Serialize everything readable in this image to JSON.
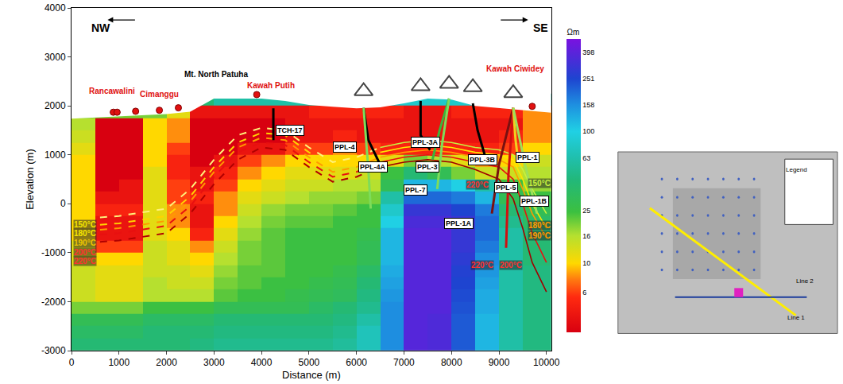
{
  "chart_data": {
    "type": "heatmap",
    "xlabel": "Distance (m)",
    "ylabel": "Elevation (m)",
    "xlim": [
      0,
      10100
    ],
    "ylim": [
      -3000,
      4000
    ],
    "xticks": [
      0,
      1000,
      2000,
      3000,
      4000,
      5000,
      6000,
      7000,
      8000,
      9000,
      10000
    ],
    "yticks": [
      -3000,
      -2000,
      -1000,
      0,
      1000,
      2000,
      3000,
      4000
    ],
    "grid": false,
    "x_edges": [
      0,
      500,
      1000,
      1500,
      2000,
      2500,
      3000,
      3500,
      4000,
      4500,
      5000,
      5500,
      6000,
      6500,
      7000,
      7500,
      8000,
      8500,
      9000,
      9500,
      10100
    ],
    "y_edges": [
      -3000,
      -2750,
      -2500,
      -2250,
      -2000,
      -1750,
      -1500,
      -1250,
      -1000,
      -750,
      -500,
      -250,
      0,
      250,
      500,
      750,
      1000,
      1250,
      1500,
      1750,
      2000,
      2250
    ],
    "cells": [
      [
        40,
        40,
        40,
        40,
        40,
        45,
        50,
        50,
        50,
        50,
        50,
        55,
        70,
        160,
        380,
        360,
        220,
        120,
        60,
        45
      ],
      [
        35,
        35,
        35,
        40,
        40,
        40,
        45,
        45,
        45,
        45,
        45,
        50,
        70,
        160,
        380,
        360,
        220,
        120,
        60,
        45
      ],
      [
        30,
        30,
        30,
        35,
        35,
        35,
        40,
        40,
        40,
        40,
        40,
        45,
        60,
        160,
        380,
        360,
        220,
        120,
        60,
        45
      ],
      [
        20,
        20,
        20,
        25,
        25,
        25,
        30,
        30,
        30,
        30,
        35,
        40,
        50,
        160,
        380,
        380,
        230,
        130,
        60,
        45
      ],
      [
        14,
        12,
        12,
        16,
        16,
        16,
        22,
        25,
        25,
        28,
        30,
        32,
        45,
        150,
        380,
        380,
        240,
        130,
        60,
        45
      ],
      [
        14,
        12,
        12,
        16,
        14,
        14,
        20,
        22,
        25,
        25,
        28,
        30,
        40,
        140,
        380,
        380,
        250,
        140,
        60,
        45
      ],
      [
        14,
        12,
        12,
        14,
        14,
        12,
        18,
        22,
        22,
        25,
        25,
        28,
        35,
        130,
        380,
        380,
        260,
        150,
        60,
        45
      ],
      [
        12,
        10,
        10,
        14,
        12,
        10,
        16,
        20,
        22,
        25,
        25,
        25,
        30,
        120,
        380,
        380,
        280,
        160,
        60,
        40
      ],
      [
        12,
        6,
        6,
        14,
        12,
        8,
        14,
        20,
        22,
        25,
        25,
        25,
        30,
        120,
        380,
        380,
        300,
        180,
        60,
        40
      ],
      [
        10,
        4,
        4,
        12,
        10,
        5,
        12,
        18,
        22,
        25,
        25,
        25,
        28,
        120,
        380,
        380,
        300,
        200,
        60,
        40
      ],
      [
        10,
        4,
        4,
        12,
        8,
        4,
        10,
        16,
        20,
        22,
        22,
        25,
        25,
        100,
        350,
        350,
        300,
        200,
        50,
        35
      ],
      [
        10,
        5,
        5,
        12,
        8,
        4,
        8,
        14,
        18,
        20,
        20,
        22,
        25,
        80,
        300,
        300,
        250,
        180,
        40,
        30
      ],
      [
        10,
        4,
        4,
        12,
        6,
        5,
        8,
        12,
        14,
        16,
        18,
        18,
        20,
        60,
        200,
        200,
        180,
        120,
        30,
        25
      ],
      [
        10,
        3,
        4,
        12,
        6,
        4,
        6,
        10,
        12,
        14,
        14,
        16,
        16,
        30,
        120,
        120,
        100,
        60,
        25,
        18
      ],
      [
        10,
        3,
        3,
        12,
        5,
        4,
        5,
        8,
        10,
        12,
        12,
        12,
        14,
        25,
        40,
        30,
        20,
        14,
        14,
        16
      ],
      [
        10,
        3,
        3,
        10,
        5,
        3,
        4,
        6,
        8,
        10,
        10,
        10,
        10,
        12,
        20,
        16,
        12,
        8,
        10,
        14
      ],
      [
        12,
        3,
        3,
        10,
        6,
        3,
        3,
        4,
        4,
        6,
        6,
        8,
        6,
        5,
        5,
        5,
        5,
        5,
        6,
        10
      ],
      [
        14,
        3,
        3,
        10,
        8,
        3,
        3,
        3,
        3,
        4,
        4,
        5,
        4,
        4,
        4,
        4,
        4,
        4,
        5,
        8
      ],
      [
        16,
        3,
        3,
        10,
        8,
        3,
        3,
        3,
        3,
        4,
        4,
        4,
        4,
        4,
        4,
        4,
        4,
        4,
        4,
        8
      ],
      [
        20,
        20,
        20,
        20,
        12,
        4,
        4,
        4,
        4,
        4,
        5,
        5,
        5,
        5,
        4,
        4,
        5,
        5,
        5,
        8
      ],
      [
        20,
        20,
        20,
        20,
        20,
        40,
        60,
        60,
        60,
        60,
        60,
        60,
        60,
        80,
        80,
        80,
        80,
        60,
        60,
        60
      ]
    ],
    "colorbar": {
      "title": "Ωm",
      "range": [
        3,
        500
      ],
      "log": true,
      "ticks": [
        6,
        10,
        16,
        25,
        63,
        100,
        158,
        251,
        398
      ]
    },
    "surface": {
      "x": [
        0,
        500,
        1000,
        1500,
        2000,
        2500,
        2800,
        3000,
        3500,
        4000,
        4500,
        5000,
        5500,
        6000,
        6500,
        7000,
        7500,
        8000,
        8500,
        9000,
        9500,
        10000,
        10100
      ],
      "elevation": [
        1740,
        1760,
        1790,
        1800,
        1830,
        1880,
        2050,
        2150,
        2150,
        2150,
        2100,
        2020,
        1980,
        1950,
        1970,
        2050,
        2150,
        2130,
        2000,
        1960,
        1920,
        1870,
        1860
      ]
    },
    "isotherms": [
      {
        "color": "#fff27a",
        "line_style": "dash",
        "x": [
          600,
          1000,
          2000,
          2500,
          3000,
          3500,
          4000,
          4500,
          5000,
          5500,
          6000,
          6500
        ],
        "y": [
          -280,
          -250,
          -100,
          300,
          900,
          1400,
          1550,
          1500,
          1150,
          850,
          950,
          1150
        ]
      },
      {
        "color": "#ffd400",
        "line_style": "dash",
        "x": [
          600,
          1000,
          2000,
          2500,
          3000,
          3500,
          4000,
          4500,
          5000,
          5500,
          6000,
          6500
        ],
        "y": [
          -430,
          -400,
          -250,
          150,
          750,
          1250,
          1450,
          1400,
          1050,
          750,
          850,
          1050
        ]
      },
      {
        "color": "#ff9a00",
        "line_style": "dash",
        "x": [
          600,
          1000,
          2000,
          2500,
          3000,
          3500,
          4000,
          4500,
          5000,
          5500,
          6000,
          6500
        ],
        "y": [
          -530,
          -500,
          -350,
          50,
          650,
          1150,
          1350,
          1300,
          950,
          650,
          750,
          950
        ]
      },
      {
        "color": "#e81010",
        "line_style": "dash",
        "x": [
          600,
          1000,
          2000,
          2500,
          3000,
          3500,
          4000,
          4500,
          5000,
          5500,
          6000,
          6500
        ],
        "y": [
          -630,
          -600,
          -450,
          -50,
          550,
          1050,
          1250,
          1200,
          850,
          550,
          650,
          850
        ]
      },
      {
        "color": "#b00000",
        "line_style": "dash",
        "x": [
          600,
          1000,
          2000,
          2500,
          3000,
          3500,
          4000,
          4500,
          5000,
          5500,
          6000,
          6500
        ],
        "y": [
          -780,
          -750,
          -600,
          -200,
          400,
          900,
          1150,
          1100,
          750,
          450,
          550,
          750
        ]
      },
      {
        "color": "#c8f040",
        "line_style": "solid",
        "x": [
          6500,
          7000,
          7500,
          8000,
          8500,
          9000,
          9300,
          9500,
          9700,
          10000
        ],
        "y": [
          1150,
          1250,
          1300,
          1250,
          1150,
          1100,
          1000,
          700,
          300,
          -200
        ]
      },
      {
        "color": "#ffe600",
        "line_style": "solid",
        "x": [
          6500,
          7000,
          7500,
          8000,
          8500,
          9000,
          9300,
          9500,
          9700,
          10000
        ],
        "y": [
          1050,
          1150,
          1200,
          1150,
          1050,
          1000,
          900,
          500,
          0,
          -500
        ]
      },
      {
        "color": "#ff9a00",
        "line_style": "solid",
        "x": [
          6500,
          7000,
          7500,
          8000,
          8500,
          9000,
          9300,
          9500,
          9700,
          10000
        ],
        "y": [
          950,
          1050,
          1100,
          1050,
          950,
          900,
          750,
          300,
          -200,
          -700
        ]
      },
      {
        "color": "#e81010",
        "line_style": "solid",
        "x": [
          6500,
          7000,
          7500,
          8000,
          8500,
          9000,
          9300,
          9500,
          9700,
          10000
        ],
        "y": [
          850,
          950,
          1000,
          950,
          850,
          750,
          500,
          0,
          -600,
          -1200
        ]
      },
      {
        "color": "#a00000",
        "line_style": "solid",
        "x": [
          6500,
          7000,
          7500,
          8000,
          8500,
          9000,
          9300,
          9500,
          9700,
          10000
        ],
        "y": [
          750,
          850,
          900,
          850,
          700,
          500,
          100,
          -500,
          -1200,
          -1800
        ]
      }
    ],
    "wells": [
      {
        "x": [
          4250,
          4250
        ],
        "y": [
          1950,
          1300
        ],
        "color": "#000000"
      },
      {
        "x": [
          6150,
          6250,
          6500
        ],
        "y": [
          1960,
          1300,
          800
        ],
        "color": "#000000"
      },
      {
        "x": [
          6150,
          6250,
          6300
        ],
        "y": [
          1960,
          700,
          -100
        ],
        "color": "#7ddc5a"
      },
      {
        "x": [
          7350,
          7350,
          7550
        ],
        "y": [
          2100,
          1400,
          1100
        ],
        "color": "#000000"
      },
      {
        "x": [
          7950,
          7750,
          7600
        ],
        "y": [
          2150,
          1500,
          900
        ],
        "color": "#3cb43c"
      },
      {
        "x": [
          7950,
          7800,
          7700
        ],
        "y": [
          2150,
          1200,
          300
        ],
        "color": "#7ddc5a"
      },
      {
        "x": [
          8450,
          8550,
          8700
        ],
        "y": [
          2050,
          1500,
          1000
        ],
        "color": "#000000"
      },
      {
        "x": [
          9300,
          9000,
          8850
        ],
        "y": [
          1960,
          800,
          -200
        ],
        "color": "#7a1010"
      },
      {
        "x": [
          9300,
          9200,
          9150
        ],
        "y": [
          1960,
          600,
          -900
        ],
        "color": "#d01010"
      },
      {
        "x": [
          9300,
          9350,
          9400
        ],
        "y": [
          1960,
          1300,
          900
        ],
        "color": "#f0d020"
      },
      {
        "x": [
          9300,
          9550,
          9800
        ],
        "y": [
          1960,
          800,
          -200
        ],
        "color": "#9ee05a"
      }
    ],
    "rigs": {
      "x": [
        6150,
        7350,
        7950,
        8450,
        9300
      ],
      "y": [
        2300,
        2400,
        2450,
        2380,
        2260
      ],
      "marker": "triangle-up-open",
      "color": "#444444"
    },
    "manifestations": {
      "x": [
        880,
        960,
        1350,
        1850,
        2250,
        3900,
        9700
      ],
      "y": [
        1870,
        1870,
        1890,
        1910,
        1960,
        2230,
        1990
      ],
      "marker": "circle",
      "color": "#e01010"
    },
    "place_labels": [
      {
        "text": "Rancawalini",
        "x": 850,
        "y": 2300,
        "color": "#e01010"
      },
      {
        "text": "Cimanggu",
        "x": 1850,
        "y": 2230,
        "color": "#e01010"
      },
      {
        "text": "Mt. North Patuha",
        "x": 3050,
        "y": 2650,
        "color": "#000000"
      },
      {
        "text": "Kawah Putih",
        "x": 4200,
        "y": 2420,
        "color": "#e01010"
      },
      {
        "text": "Kawah Ciwidey",
        "x": 9350,
        "y": 2750,
        "color": "#e01010"
      }
    ],
    "well_labels": [
      {
        "text": "TCH-17",
        "x": 4600,
        "y": 1500
      },
      {
        "text": "PPL-4",
        "x": 5750,
        "y": 1150
      },
      {
        "text": "PPL-4A",
        "x": 6350,
        "y": 750
      },
      {
        "text": "PPL-3A",
        "x": 7450,
        "y": 1250
      },
      {
        "text": "PPL-3",
        "x": 7500,
        "y": 750
      },
      {
        "text": "PPL-7",
        "x": 7250,
        "y": 280
      },
      {
        "text": "PPL-3B",
        "x": 8650,
        "y": 900
      },
      {
        "text": "PPL-1A",
        "x": 8150,
        "y": -400
      },
      {
        "text": "PPL-5",
        "x": 9150,
        "y": 330
      },
      {
        "text": "PPL-1",
        "x": 9600,
        "y": 950
      },
      {
        "text": "PPL-1B",
        "x": 9750,
        "y": 50
      }
    ],
    "temperature_labels": [
      {
        "text": "150°C",
        "x": 280,
        "y": -420,
        "color": "#f5e400"
      },
      {
        "text": "180°C",
        "x": 280,
        "y": -610,
        "color": "#f5e400"
      },
      {
        "text": "190°C",
        "x": 280,
        "y": -800,
        "color": "#f0c400"
      },
      {
        "text": "200°C",
        "x": 280,
        "y": -990,
        "color": "#ff3030"
      },
      {
        "text": "220°C",
        "x": 280,
        "y": -1180,
        "color": "#ff3030"
      },
      {
        "text": "150°C",
        "x": 9850,
        "y": 420,
        "color": "#c8f040"
      },
      {
        "text": "220°C",
        "x": 8550,
        "y": 380,
        "color": "#ff3030"
      },
      {
        "text": "180°C",
        "x": 9850,
        "y": -450,
        "color": "#ff9a00"
      },
      {
        "text": "190°C",
        "x": 9850,
        "y": -650,
        "color": "#ff9a00"
      },
      {
        "text": "220°C",
        "x": 8650,
        "y": -1250,
        "color": "#ff3030"
      },
      {
        "text": "200°C",
        "x": 9250,
        "y": -1250,
        "color": "#ff3030"
      }
    ],
    "direction_labels": {
      "left": "NW",
      "right": "SE"
    },
    "inset": {
      "title": "Legend",
      "labels": [
        "Line 1",
        "Line 2"
      ],
      "colors": [
        "#ffee00",
        "#1c3c9c"
      ]
    }
  }
}
